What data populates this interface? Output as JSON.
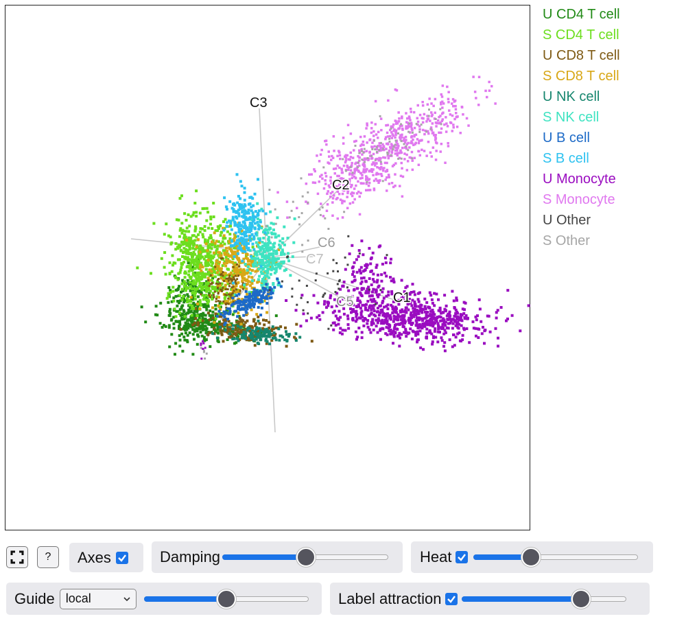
{
  "plot": {
    "axes": [
      "C3",
      "C2",
      "C6",
      "C7",
      "C5",
      "C1"
    ],
    "colors": {
      "u_cd4": "#218a16",
      "s_cd4": "#6cde1e",
      "u_cd8": "#7e5a14",
      "s_cd8": "#d8a716",
      "u_nk": "#16866e",
      "s_nk": "#3ee3c1",
      "u_b": "#1d6ac7",
      "s_b": "#2ec2f0",
      "u_mono": "#9a0cc0",
      "s_mono": "#e078ef",
      "u_other": "#444444",
      "s_other": "#a6a6a6",
      "axis_line": "#c8c8c8"
    }
  },
  "legend": [
    {
      "label": "U CD4 T cell",
      "color": "#218a16"
    },
    {
      "label": "S CD4 T cell",
      "color": "#6cde1e"
    },
    {
      "label": "U CD8 T cell",
      "color": "#7e5a14"
    },
    {
      "label": "S CD8 T cell",
      "color": "#d8a716"
    },
    {
      "label": "U NK cell",
      "color": "#16866e"
    },
    {
      "label": "S NK cell",
      "color": "#3ee3c1"
    },
    {
      "label": "U B cell",
      "color": "#1d6ac7"
    },
    {
      "label": "S B cell",
      "color": "#2ec2f0"
    },
    {
      "label": "U Monocyte",
      "color": "#9a0cc0"
    },
    {
      "label": "S Monocyte",
      "color": "#e078ef"
    },
    {
      "label": "U Other",
      "color": "#444444"
    },
    {
      "label": "S Other",
      "color": "#a6a6a6"
    }
  ],
  "controls": {
    "fullscreen_icon": "fullscreen-icon",
    "help_label": "?",
    "axes": {
      "label": "Axes",
      "checked": true
    },
    "damping": {
      "label": "Damping",
      "value": 0.5
    },
    "heat": {
      "label": "Heat",
      "checked": true,
      "value": 0.35
    },
    "guide": {
      "label": "Guide",
      "selected": "local",
      "value": 0.5
    },
    "label_attraction": {
      "label": "Label attraction",
      "checked": true,
      "value": 0.74
    }
  }
}
